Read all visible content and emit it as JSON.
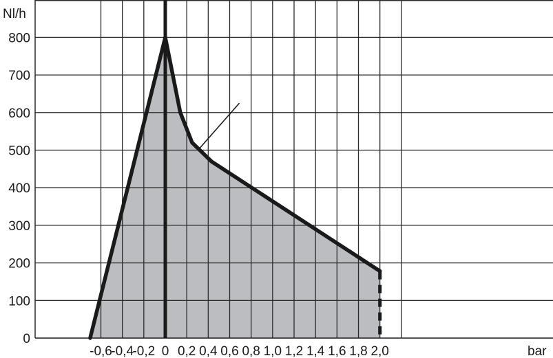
{
  "chart_data": {
    "type": "area",
    "ylabel": "Nl/h",
    "xlabel": "bar",
    "xlim": [
      -0.7,
      2.2
    ],
    "ylim": [
      0,
      860
    ],
    "x_ticks": [
      {
        "value": -0.6,
        "label": "-0,6"
      },
      {
        "value": -0.4,
        "label": "-0,4"
      },
      {
        "value": -0.2,
        "label": "-0,2"
      },
      {
        "value": 0,
        "label": "0"
      },
      {
        "value": 0.2,
        "label": "0,2"
      },
      {
        "value": 0.4,
        "label": "0,4"
      },
      {
        "value": 0.6,
        "label": "0,6"
      },
      {
        "value": 0.8,
        "label": "0,8"
      },
      {
        "value": 1.0,
        "label": "1,0"
      },
      {
        "value": 1.2,
        "label": "1,2"
      },
      {
        "value": 1.4,
        "label": "1,4"
      },
      {
        "value": 1.6,
        "label": "1,6"
      },
      {
        "value": 1.8,
        "label": "1,8"
      },
      {
        "value": 2.0,
        "label": "2,0"
      }
    ],
    "y_ticks": [
      {
        "value": 0,
        "label": "0"
      },
      {
        "value": 100,
        "label": "100"
      },
      {
        "value": 200,
        "label": "200"
      },
      {
        "value": 300,
        "label": "300"
      },
      {
        "value": 400,
        "label": "400"
      },
      {
        "value": 500,
        "label": "500"
      },
      {
        "value": 600,
        "label": "600"
      },
      {
        "value": 700,
        "label": "700"
      },
      {
        "value": 800,
        "label": "800"
      }
    ],
    "grid": true,
    "series": [
      {
        "points": [
          {
            "x": -0.7,
            "y": 0
          },
          {
            "x": 0,
            "y": 800
          },
          {
            "x": 0.14,
            "y": 600
          },
          {
            "x": 0.25,
            "y": 520
          },
          {
            "x": 0.43,
            "y": 470
          },
          {
            "x": 2.0,
            "y": 178
          }
        ],
        "fill_color": "#bcbdc1",
        "line_color": "#1a1a1a"
      }
    ],
    "drop_line": {
      "x": 2.0,
      "from_y": 178,
      "to_y": 0,
      "style": "dashed"
    },
    "leader_line": {
      "from": {
        "x": 0.32,
        "y": 505
      },
      "to": {
        "x": 0.69,
        "y": 625
      }
    }
  }
}
